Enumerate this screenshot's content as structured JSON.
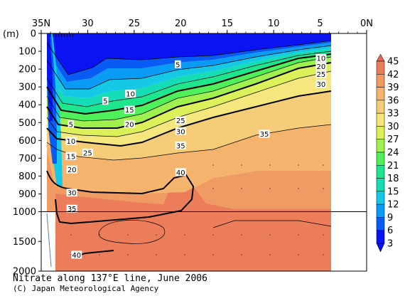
{
  "chart_data": {
    "type": "heatmap",
    "title": "Nitrate along 137°E line, June 2006",
    "credit": "(C) Japan Meteorological Agency",
    "x_unit_label": "",
    "y_unit_label": "(m)",
    "x_ticks": [
      {
        "lat": 35,
        "label": "35N"
      },
      {
        "lat": 30,
        "label": "30"
      },
      {
        "lat": 25,
        "label": "25"
      },
      {
        "lat": 20,
        "label": "20"
      },
      {
        "lat": 15,
        "label": "15"
      },
      {
        "lat": 10,
        "label": "10"
      },
      {
        "lat": 5,
        "label": "5"
      },
      {
        "lat": 0,
        "label": "0N"
      }
    ],
    "y_ticks_upper": [
      {
        "depth": 0,
        "label": "0"
      },
      {
        "depth": 100,
        "label": "100"
      },
      {
        "depth": 200,
        "label": "200"
      },
      {
        "depth": 300,
        "label": "300"
      },
      {
        "depth": 400,
        "label": "400"
      },
      {
        "depth": 500,
        "label": "500"
      },
      {
        "depth": 600,
        "label": "600"
      },
      {
        "depth": 700,
        "label": "700"
      },
      {
        "depth": 800,
        "label": "800"
      },
      {
        "depth": 900,
        "label": "900"
      },
      {
        "depth": 1000,
        "label": "1000"
      }
    ],
    "y_ticks_lower": [
      {
        "depth": 1500,
        "label": "1500"
      },
      {
        "depth": 2000,
        "label": "2000"
      }
    ],
    "xlim": [
      35,
      0
    ],
    "ylim": [
      0,
      2000
    ],
    "axis_break_depth": 1000,
    "data_lat_range": [
      34,
      3
    ],
    "colorbar": {
      "levels": [
        3,
        6,
        9,
        12,
        15,
        18,
        21,
        24,
        27,
        30,
        33,
        36,
        39,
        42,
        45
      ],
      "labels": [
        "3",
        "6",
        "9",
        "12",
        "15",
        "18",
        "21",
        "24",
        "27",
        "30",
        "33",
        "36",
        "39",
        "42",
        "45"
      ],
      "colors": [
        "#0a14f0",
        "#0a5af5",
        "#0a9cf5",
        "#14c8e6",
        "#14dcb4",
        "#1ee68c",
        "#50f05a",
        "#a0f050",
        "#dcf05a",
        "#f5e67d",
        "#f5cd78",
        "#f5b46e",
        "#f09b64",
        "#eb7d5a",
        "#e6645a"
      ]
    },
    "contour_labels": [
      {
        "value": "5",
        "lat": 31.8,
        "depth": 510
      },
      {
        "value": "10",
        "lat": 31.8,
        "depth": 605
      },
      {
        "value": "15",
        "lat": 31.8,
        "depth": 690
      },
      {
        "value": "20",
        "lat": 31.7,
        "depth": 765
      },
      {
        "value": "30",
        "lat": 31.7,
        "depth": 895
      },
      {
        "value": "35",
        "lat": 31.7,
        "depth": 985
      },
      {
        "value": "25",
        "lat": 30.0,
        "depth": 670
      },
      {
        "value": "5",
        "lat": 28.1,
        "depth": 380
      },
      {
        "value": "10",
        "lat": 25.4,
        "depth": 340
      },
      {
        "value": "15",
        "lat": 25.5,
        "depth": 430
      },
      {
        "value": "20",
        "lat": 25.5,
        "depth": 510
      },
      {
        "value": "5",
        "lat": 20.3,
        "depth": 175
      },
      {
        "value": "25",
        "lat": 20.0,
        "depth": 490
      },
      {
        "value": "30",
        "lat": 20.0,
        "depth": 550
      },
      {
        "value": "35",
        "lat": 20.0,
        "depth": 630
      },
      {
        "value": "40",
        "lat": 20.0,
        "depth": 780
      },
      {
        "value": "35",
        "lat": 11.0,
        "depth": 565
      },
      {
        "value": "10",
        "lat": 4.9,
        "depth": 140
      },
      {
        "value": "20",
        "lat": 4.9,
        "depth": 185
      },
      {
        "value": "25",
        "lat": 4.9,
        "depth": 230
      },
      {
        "value": "30",
        "lat": 4.9,
        "depth": 285
      },
      {
        "value": "40",
        "lat": 31.2,
        "depth": 1730
      }
    ]
  }
}
